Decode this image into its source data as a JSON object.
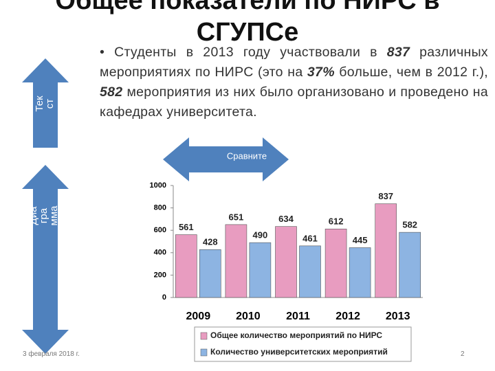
{
  "slide": {
    "title": "Общее показатели по НИРС в СГУПСе",
    "bullet": [
      "Студенты в 2013 году участвовали в ",
      "837",
      " различных мероприятиях по НИРС (это на ",
      "37%",
      " больше, чем в 2012 г.), ",
      "582",
      " мероприятия из них было организовано и проведено на кафедрах университета."
    ],
    "arrow_text": "Текст",
    "arrow_chart": "Диаграмма",
    "arrow_compare": "Сравните",
    "date": "3 февраля 2018 г.",
    "page": "2"
  },
  "chart_data": {
    "type": "bar",
    "categories": [
      "2009",
      "2010",
      "2011",
      "2012",
      "2013"
    ],
    "series": [
      {
        "name": "Общее количество мероприятий по НИРС",
        "color": "#e89cc0",
        "values": [
          561,
          651,
          634,
          612,
          837
        ]
      },
      {
        "name": "Количество университетских мероприятий",
        "color": "#8db4e2",
        "values": [
          428,
          490,
          461,
          445,
          582
        ]
      }
    ],
    "ylim": [
      0,
      1000
    ],
    "yticks": [
      0,
      200,
      400,
      600,
      800,
      1000
    ],
    "grid": false,
    "legend": "bottom"
  }
}
